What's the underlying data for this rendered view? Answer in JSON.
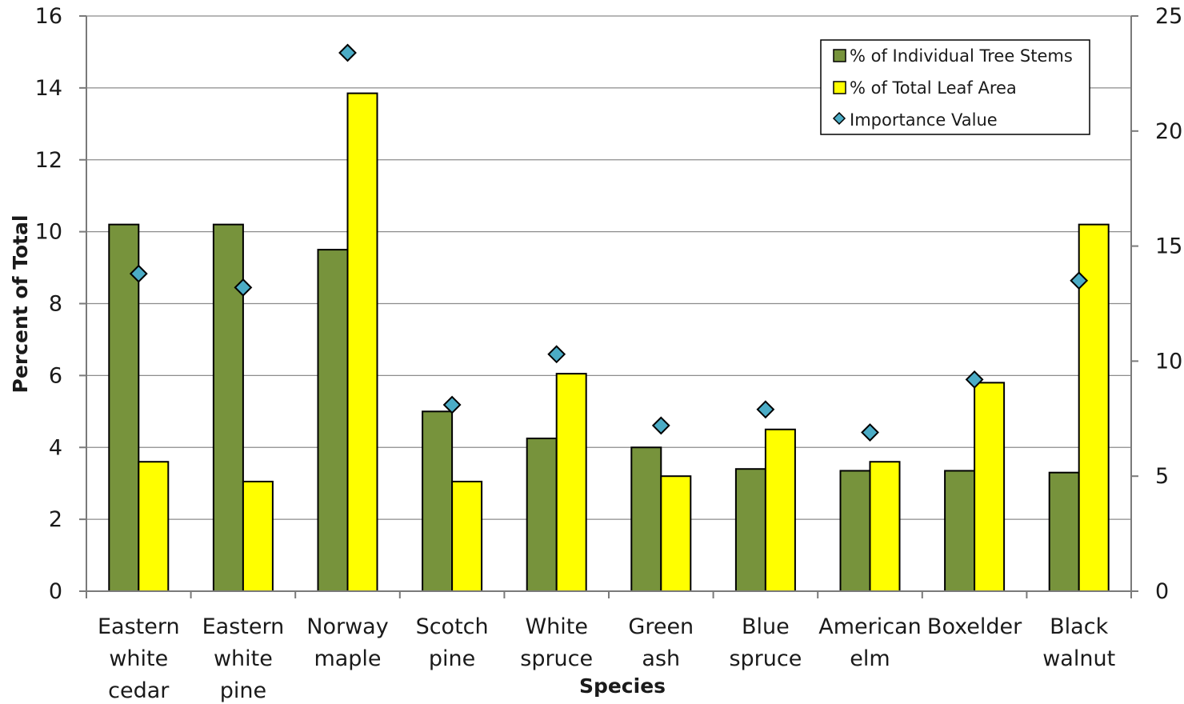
{
  "chart_data": {
    "type": "bar",
    "title": "",
    "xlabel": "Species",
    "ylabel": "Percent of Total",
    "ylim": [
      0,
      16
    ],
    "y_ticks": [
      "0",
      "2",
      "4",
      "6",
      "8",
      "10",
      "12",
      "14",
      "16"
    ],
    "y2lim": [
      0,
      25
    ],
    "y2_ticks": [
      "0",
      "5",
      "10",
      "15",
      "20",
      "25"
    ],
    "grid": true,
    "legend_position": "top-right",
    "categories": [
      [
        "Eastern",
        "white",
        "cedar"
      ],
      [
        "Eastern",
        "white",
        "pine"
      ],
      [
        "Norway",
        "maple"
      ],
      [
        "Scotch",
        "pine"
      ],
      [
        "White",
        "spruce"
      ],
      [
        "Green",
        "ash"
      ],
      [
        "Blue",
        "spruce"
      ],
      [
        "American",
        "elm"
      ],
      [
        "Boxelder"
      ],
      [
        "Black",
        "walnut"
      ]
    ],
    "series": [
      {
        "name": "% of Individual Tree Stems",
        "type": "bar",
        "axis": "left",
        "color": "#77933C",
        "values": [
          10.2,
          10.2,
          9.5,
          5.0,
          4.25,
          4.0,
          3.4,
          3.35,
          3.35,
          3.3
        ]
      },
      {
        "name": "% of Total Leaf Area",
        "type": "bar",
        "axis": "left",
        "color": "#FFFF00",
        "values": [
          3.6,
          3.05,
          13.85,
          3.05,
          6.05,
          3.2,
          4.5,
          3.6,
          5.8,
          10.2
        ]
      },
      {
        "name": "Importance Value",
        "type": "scatter",
        "marker": "diamond",
        "axis": "right",
        "color": "#4BACC6",
        "values": [
          13.8,
          13.2,
          23.4,
          8.1,
          10.3,
          7.2,
          7.9,
          6.9,
          9.2,
          13.5
        ]
      }
    ]
  }
}
